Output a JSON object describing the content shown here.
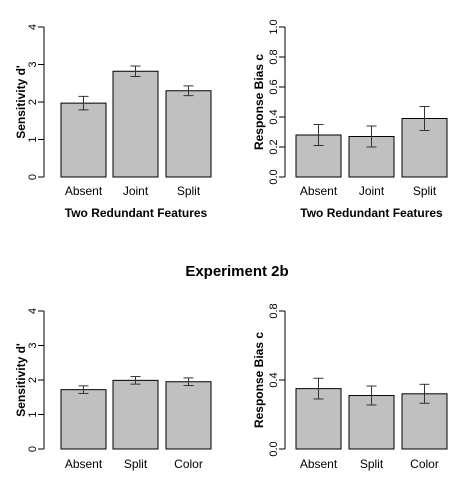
{
  "heading": "Experiment 2b",
  "chart_data": [
    {
      "type": "bar",
      "categories": [
        "Absent",
        "Joint",
        "Split"
      ],
      "values": [
        1.97,
        2.82,
        2.3
      ],
      "error": [
        0.18,
        0.14,
        0.13
      ],
      "ylabel": "Sensitivity d'",
      "xlabel": "Two Redundant Features",
      "ylim": [
        0,
        4
      ],
      "yticks": [
        "0",
        "1",
        "2",
        "3",
        "4"
      ],
      "bar_color": "#c0c0c0"
    },
    {
      "type": "bar",
      "categories": [
        "Absent",
        "Joint",
        "Split"
      ],
      "values": [
        0.28,
        0.27,
        0.39
      ],
      "error": [
        0.07,
        0.07,
        0.08
      ],
      "ylabel": "Response Bias c",
      "xlabel": "Two Redundant Features",
      "ylim": [
        0,
        1.0
      ],
      "yticks": [
        "0.0",
        "0.2",
        "0.4",
        "0.6",
        "0.8",
        "1.0"
      ],
      "bar_color": "#c0c0c0"
    },
    {
      "type": "bar",
      "categories": [
        "Absent",
        "Split",
        "Color"
      ],
      "values": [
        1.72,
        1.99,
        1.95
      ],
      "error": [
        0.11,
        0.11,
        0.11
      ],
      "ylabel": "Sensitivity d'",
      "xlabel": "",
      "ylim": [
        0,
        4
      ],
      "yticks": [
        "0",
        "1",
        "2",
        "3",
        "4"
      ],
      "bar_color": "#c0c0c0"
    },
    {
      "type": "bar",
      "categories": [
        "Absent",
        "Split",
        "Color"
      ],
      "values": [
        0.35,
        0.31,
        0.32
      ],
      "error": [
        0.06,
        0.055,
        0.055
      ],
      "ylabel": "Response Bias c",
      "xlabel": "",
      "ylim": [
        0,
        0.8
      ],
      "yticks": [
        "0.0",
        "0.4",
        "0.8"
      ],
      "bar_color": "#c0c0c0"
    }
  ]
}
